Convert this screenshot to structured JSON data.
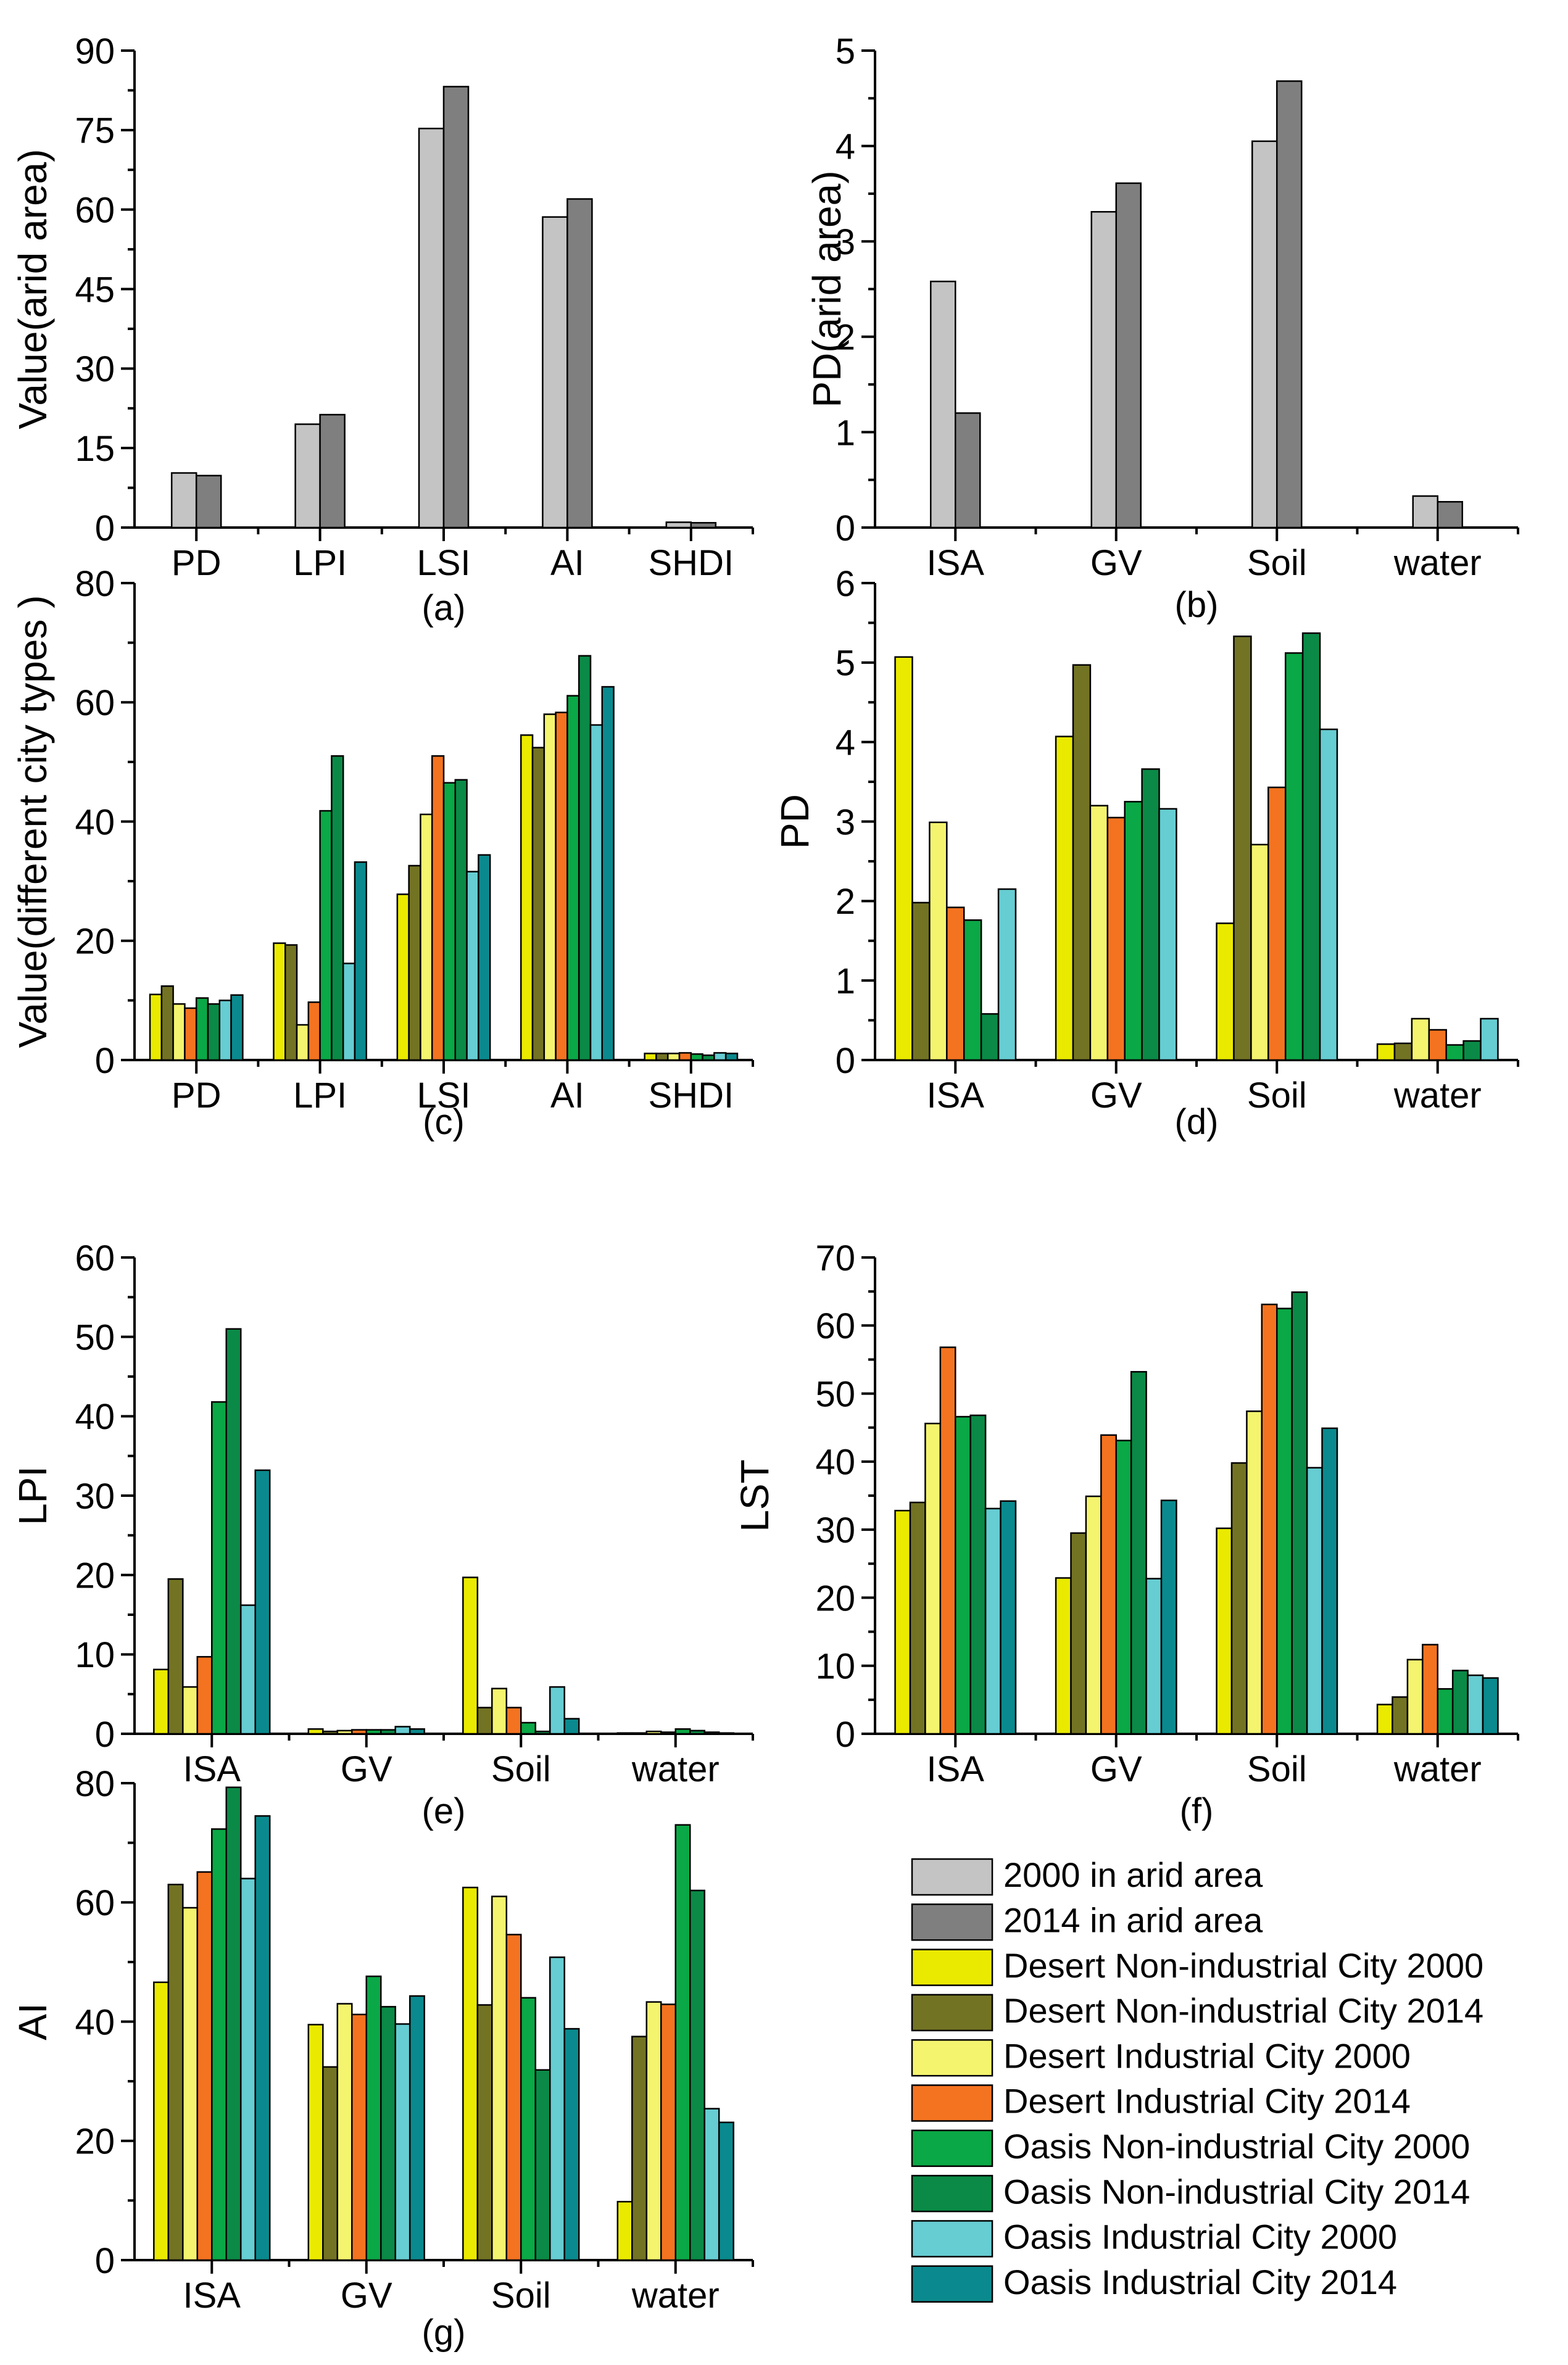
{
  "colors": {
    "arid2000": "#c4c4c4",
    "arid2014": "#7f7f7f",
    "dn2000": "#eaea00",
    "dn2014": "#737324",
    "di2000": "#f4f46f",
    "di2014": "#f47320",
    "on2000": "#0aa846",
    "on2014": "#0a8a46",
    "oi2000": "#66cdd2",
    "oi2014": "#0a8a8e"
  },
  "legend": [
    {
      "key": "arid2000",
      "label": "2000 in arid area"
    },
    {
      "key": "arid2014",
      "label": "2014 in arid area"
    },
    {
      "key": "dn2000",
      "label": "Desert Non-industrial City 2000"
    },
    {
      "key": "dn2014",
      "label": "Desert Non-industrial City 2014"
    },
    {
      "key": "di2000",
      "label": "Desert Industrial City 2000"
    },
    {
      "key": "di2014",
      "label": "Desert Industrial City 2014"
    },
    {
      "key": "on2000",
      "label": "Oasis Non-industrial City 2000"
    },
    {
      "key": "on2014",
      "label": "Oasis Non-industrial City 2014"
    },
    {
      "key": "oi2000",
      "label": "Oasis Industrial City 2000"
    },
    {
      "key": "oi2014",
      "label": "Oasis Industrial City 2014"
    }
  ],
  "chart_data": [
    {
      "id": "a",
      "type": "bar",
      "panel_label": "(a)",
      "ylabel": "Value(arid area)",
      "ylim": [
        0,
        90
      ],
      "yticks": [
        "0",
        "15",
        "30",
        "45",
        "60",
        "75",
        "90"
      ],
      "categories": [
        "PD",
        "LPI",
        "LSI",
        "AI",
        "SHDI"
      ],
      "series": [
        {
          "key": "arid2000",
          "values": [
            10.3,
            19.5,
            75.3,
            58.6,
            1.0
          ]
        },
        {
          "key": "arid2014",
          "values": [
            9.8,
            21.3,
            83.2,
            62.0,
            0.9
          ]
        }
      ]
    },
    {
      "id": "b",
      "type": "bar",
      "panel_label": "(b)",
      "ylabel": "PD(arid area)",
      "ylim": [
        0,
        5
      ],
      "yticks": [
        "0",
        "1",
        "2",
        "3",
        "4",
        "5"
      ],
      "categories": [
        "ISA",
        "GV",
        "Soil",
        "water"
      ],
      "series": [
        {
          "key": "arid2000",
          "values": [
            2.58,
            3.31,
            4.05,
            0.33
          ]
        },
        {
          "key": "arid2014",
          "values": [
            1.2,
            3.61,
            4.68,
            0.27
          ]
        }
      ]
    },
    {
      "id": "c",
      "type": "bar",
      "panel_label": "(c)",
      "ylabel": "Value(different city types )",
      "ylim": [
        0,
        80
      ],
      "yticks": [
        "0",
        "20",
        "40",
        "60",
        "80"
      ],
      "categories": [
        "PD",
        "LPI",
        "LSI",
        "AI",
        "SHDI"
      ],
      "series": [
        {
          "key": "dn2000",
          "values": [
            11.0,
            19.6,
            27.8,
            54.5,
            1.1
          ]
        },
        {
          "key": "dn2014",
          "values": [
            12.4,
            19.3,
            32.6,
            52.4,
            1.1
          ]
        },
        {
          "key": "di2000",
          "values": [
            9.4,
            5.9,
            41.2,
            58.0,
            1.1
          ]
        },
        {
          "key": "di2014",
          "values": [
            8.7,
            9.7,
            51.0,
            58.3,
            1.2
          ]
        },
        {
          "key": "on2000",
          "values": [
            10.4,
            41.8,
            46.5,
            61.1,
            1.0
          ]
        },
        {
          "key": "on2014",
          "values": [
            9.4,
            51.0,
            47.0,
            67.8,
            0.8
          ]
        },
        {
          "key": "oi2000",
          "values": [
            10.0,
            16.2,
            31.6,
            56.2,
            1.2
          ]
        },
        {
          "key": "oi2014",
          "values": [
            10.9,
            33.2,
            34.4,
            62.6,
            1.1
          ]
        }
      ]
    },
    {
      "id": "d",
      "type": "bar",
      "panel_label": "(d)",
      "ylabel": "PD",
      "ylim": [
        0,
        6
      ],
      "yticks": [
        "0",
        "1",
        "2",
        "3",
        "4",
        "5",
        "6"
      ],
      "categories": [
        "ISA",
        "GV",
        "Soil",
        "water"
      ],
      "series": [
        {
          "key": "dn2000",
          "values": [
            5.07,
            4.07,
            1.72,
            0.2
          ]
        },
        {
          "key": "dn2014",
          "values": [
            1.98,
            4.97,
            5.33,
            0.21
          ]
        },
        {
          "key": "di2000",
          "values": [
            2.99,
            3.2,
            2.71,
            0.52
          ]
        },
        {
          "key": "di2014",
          "values": [
            1.92,
            3.05,
            3.43,
            0.38
          ]
        },
        {
          "key": "on2000",
          "values": [
            1.76,
            3.25,
            5.12,
            0.19
          ]
        },
        {
          "key": "on2014",
          "values": [
            0.58,
            3.66,
            5.37,
            0.24
          ]
        },
        {
          "key": "oi2000",
          "values": [
            2.15,
            3.16,
            4.16,
            0.52
          ]
        }
      ]
    },
    {
      "id": "e",
      "type": "bar",
      "panel_label": "(e)",
      "ylabel": "LPI",
      "ylim": [
        0,
        60
      ],
      "yticks": [
        "0",
        "10",
        "20",
        "30",
        "40",
        "50",
        "60"
      ],
      "categories": [
        "ISA",
        "GV",
        "Soil",
        "water"
      ],
      "series": [
        {
          "key": "dn2000",
          "values": [
            8.1,
            0.6,
            19.7,
            0.1
          ]
        },
        {
          "key": "dn2014",
          "values": [
            19.5,
            0.3,
            3.3,
            0.1
          ]
        },
        {
          "key": "di2000",
          "values": [
            5.9,
            0.4,
            5.7,
            0.3
          ]
        },
        {
          "key": "di2014",
          "values": [
            9.7,
            0.5,
            3.3,
            0.2
          ]
        },
        {
          "key": "on2000",
          "values": [
            41.8,
            0.5,
            1.4,
            0.6
          ]
        },
        {
          "key": "on2014",
          "values": [
            51.0,
            0.5,
            0.3,
            0.4
          ]
        },
        {
          "key": "oi2000",
          "values": [
            16.2,
            0.9,
            5.9,
            0.2
          ]
        },
        {
          "key": "oi2014",
          "values": [
            33.2,
            0.6,
            1.9,
            0.1
          ]
        }
      ]
    },
    {
      "id": "f",
      "type": "bar",
      "panel_label": "(f)",
      "ylabel": "LST",
      "ylim": [
        0,
        70
      ],
      "yticks": [
        "0",
        "10",
        "20",
        "30",
        "40",
        "50",
        "60",
        "70"
      ],
      "categories": [
        "ISA",
        "GV",
        "Soil",
        "water"
      ],
      "series": [
        {
          "key": "dn2000",
          "values": [
            32.8,
            22.9,
            30.2,
            4.3
          ]
        },
        {
          "key": "dn2014",
          "values": [
            34.0,
            29.5,
            39.8,
            5.4
          ]
        },
        {
          "key": "di2000",
          "values": [
            45.6,
            34.9,
            47.4,
            10.9
          ]
        },
        {
          "key": "di2014",
          "values": [
            56.8,
            43.9,
            63.1,
            13.1
          ]
        },
        {
          "key": "on2000",
          "values": [
            46.6,
            43.1,
            62.5,
            6.6
          ]
        },
        {
          "key": "on2014",
          "values": [
            46.8,
            53.2,
            64.9,
            9.3
          ]
        },
        {
          "key": "oi2000",
          "values": [
            33.1,
            22.8,
            39.1,
            8.6
          ]
        },
        {
          "key": "oi2014",
          "values": [
            34.2,
            34.3,
            44.9,
            8.2
          ]
        }
      ]
    },
    {
      "id": "g",
      "type": "bar",
      "panel_label": "(g)",
      "ylabel": "AI",
      "ylim": [
        0,
        80
      ],
      "yticks": [
        "0",
        "20",
        "40",
        "60",
        "80"
      ],
      "categories": [
        "ISA",
        "GV",
        "Soil",
        "water"
      ],
      "series": [
        {
          "key": "dn2000",
          "values": [
            46.6,
            39.5,
            62.5,
            9.8
          ]
        },
        {
          "key": "dn2014",
          "values": [
            63.0,
            32.4,
            42.8,
            37.5
          ]
        },
        {
          "key": "di2000",
          "values": [
            59.1,
            43.0,
            61.0,
            43.3
          ]
        },
        {
          "key": "di2014",
          "values": [
            65.1,
            41.2,
            54.6,
            42.9
          ]
        },
        {
          "key": "on2000",
          "values": [
            72.3,
            47.6,
            44.0,
            73.0
          ]
        },
        {
          "key": "on2014",
          "values": [
            79.3,
            42.5,
            31.9,
            62.0
          ]
        },
        {
          "key": "oi2000",
          "values": [
            64.0,
            39.6,
            50.8,
            25.4
          ]
        },
        {
          "key": "oi2014",
          "values": [
            74.5,
            44.3,
            38.8,
            23.1
          ]
        }
      ]
    }
  ]
}
